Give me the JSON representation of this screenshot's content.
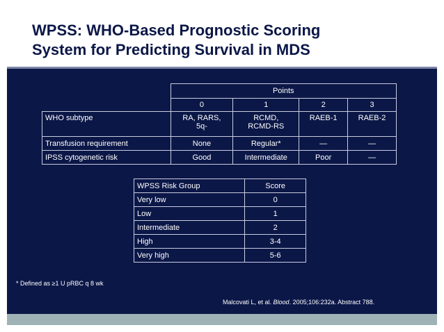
{
  "slide": {
    "title_line1": "WPSS: WHO-Based Prognostic Scoring",
    "title_line2": "System for Predicting Survival in MDS"
  },
  "points_table": {
    "points_header": "Points",
    "score_columns": [
      "0",
      "1",
      "2",
      "3"
    ],
    "rows": [
      {
        "label": "WHO subtype",
        "cells": [
          "RA, RARS,\n5q-",
          "RCMD,\nRCMD-RS",
          "RAEB-1",
          "RAEB-2"
        ]
      },
      {
        "label": "Transfusion requirement",
        "cells": [
          "None",
          "Regular*",
          "—",
          "—"
        ]
      },
      {
        "label": "IPSS cytogenetic risk",
        "cells": [
          "Good",
          "Intermediate",
          "Poor",
          "—"
        ]
      }
    ]
  },
  "risk_table": {
    "headers": [
      "WPSS Risk Group",
      "Score"
    ],
    "rows": [
      {
        "group": "Very low",
        "score": "0"
      },
      {
        "group": "Low",
        "score": "1"
      },
      {
        "group": "Intermediate",
        "score": "2"
      },
      {
        "group": "High",
        "score": "3-4"
      },
      {
        "group": "Very high",
        "score": "5-6"
      }
    ]
  },
  "footnote": "* Defined as ≥1 U pRBC q 8 wk",
  "citation": {
    "authors": "Malcovati L, et al. ",
    "journal": "Blood",
    "details": ". 2005;106:232a. Abstract 788."
  },
  "colors": {
    "slide_bg": "#0b1747",
    "title_text": "#0b1747",
    "table_border": "#c9cde0",
    "bottom_strip": "#9fb3b6"
  }
}
